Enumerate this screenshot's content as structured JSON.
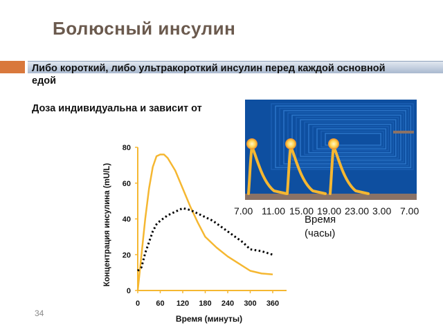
{
  "slide": {
    "title": "Болюсный инсулин",
    "bullet1": "Либо короткий, либо ультракороткий инсулин перед каждой основной едой",
    "bullet2": "Доза индивидуальна и зависит от",
    "page_number": "34"
  },
  "colors": {
    "title": "#6b5a4e",
    "accent_orange": "#d9783c",
    "curve_yellow": "#f5b731",
    "panel_blue": "#0e4fa0"
  },
  "chart_data": [
    {
      "type": "line",
      "title": "",
      "xlabel": "Время (минуты)",
      "ylabel": "Концентрация инсулина (mU/L)",
      "xlim": [
        0,
        360
      ],
      "ylim": [
        0,
        80
      ],
      "x_ticks": [
        "0",
        "60",
        "120",
        "180",
        "240",
        "300",
        "360"
      ],
      "y_ticks": [
        "0",
        "20",
        "40",
        "60",
        "80"
      ],
      "grid": false,
      "series": [
        {
          "style": "solid",
          "color": "#f5b731",
          "points": [
            [
              0,
              0
            ],
            [
              10,
              20
            ],
            [
              20,
              40
            ],
            [
              30,
              57
            ],
            [
              40,
              69
            ],
            [
              50,
              75
            ],
            [
              60,
              76
            ],
            [
              70,
              76
            ],
            [
              80,
              74
            ],
            [
              100,
              67
            ],
            [
              120,
              57
            ],
            [
              140,
              47
            ],
            [
              160,
              38
            ],
            [
              180,
              30
            ],
            [
              210,
              24
            ],
            [
              240,
              19
            ],
            [
              270,
              15
            ],
            [
              300,
              11
            ],
            [
              330,
              9.5
            ],
            [
              360,
              9
            ]
          ]
        },
        {
          "style": "dotted",
          "color": "#000000",
          "points": [
            [
              0,
              11
            ],
            [
              10,
              13
            ],
            [
              20,
              21
            ],
            [
              30,
              27
            ],
            [
              40,
              33
            ],
            [
              50,
              37
            ],
            [
              60,
              39
            ],
            [
              80,
              42
            ],
            [
              100,
              44
            ],
            [
              120,
              46
            ],
            [
              140,
              45
            ],
            [
              160,
              43
            ],
            [
              180,
              41
            ],
            [
              200,
              39
            ],
            [
              220,
              36
            ],
            [
              240,
              33
            ],
            [
              260,
              30
            ],
            [
              280,
              27
            ],
            [
              300,
              23
            ],
            [
              330,
              22
            ],
            [
              360,
              20
            ]
          ]
        }
      ]
    },
    {
      "type": "line",
      "title": "",
      "xlabel": "Время (часы)",
      "x_ticks": [
        "7.00",
        "11.00",
        "15.00",
        "19.00",
        "23.00",
        "3.00",
        "7.00"
      ],
      "background": "#0e4fa0",
      "series": [
        {
          "style": "spikes",
          "color": "#f5b731",
          "peak_times": [
            "7.00",
            "11.00",
            "15.00"
          ]
        }
      ]
    }
  ]
}
